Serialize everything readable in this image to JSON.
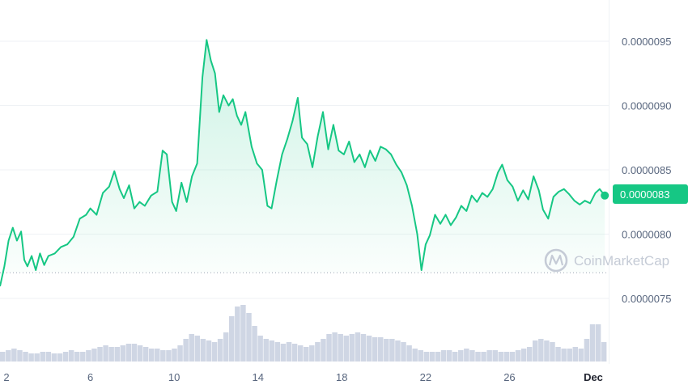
{
  "watermark": {
    "text": "CoinMarketCap",
    "icon": "coinmarketcap-logo-icon"
  },
  "colors": {
    "up": "#16c784",
    "down": "#ea3943",
    "grid": "#eff2f5",
    "volume": "#cfd6e4",
    "badge": "#16c784"
  },
  "chart_data": {
    "type": "line",
    "title": "",
    "xlabel": "",
    "ylabel": "",
    "ylim": [
      7.2e-07,
      9.8e-07
    ],
    "y_ticks": [
      "0.0000075",
      "0.0000080",
      "0.0000085",
      "0.0000090",
      "0.0000095"
    ],
    "y_tick_values": [
      7.5e-07,
      8e-07,
      8.5e-07,
      9e-07,
      9.5e-07
    ],
    "x_ticks": [
      "2",
      "6",
      "10",
      "14",
      "18",
      "22",
      "26",
      "Dec"
    ],
    "x_tick_days": [
      2,
      6,
      10,
      14,
      18,
      22,
      26,
      30
    ],
    "current_price_label": "0.0000083",
    "baseline": 7.7e-07,
    "grid": true,
    "series": [
      {
        "values": [
          [
            1.7,
            7.6e-07
          ],
          [
            1.9,
            7.75e-07
          ],
          [
            2.1,
            7.95e-07
          ],
          [
            2.3,
            8.05e-07
          ],
          [
            2.5,
            7.95e-07
          ],
          [
            2.7,
            8.02e-07
          ],
          [
            2.85,
            7.8e-07
          ],
          [
            3.0,
            7.75e-07
          ],
          [
            3.2,
            7.83e-07
          ],
          [
            3.4,
            7.72e-07
          ],
          [
            3.6,
            7.85e-07
          ],
          [
            3.8,
            7.76e-07
          ],
          [
            4.0,
            7.83e-07
          ],
          [
            4.3,
            7.85e-07
          ],
          [
            4.6,
            7.9e-07
          ],
          [
            4.9,
            7.92e-07
          ],
          [
            5.2,
            7.98e-07
          ],
          [
            5.5,
            8.12e-07
          ],
          [
            5.8,
            8.15e-07
          ],
          [
            6.0,
            8.2e-07
          ],
          [
            6.3,
            8.15e-07
          ],
          [
            6.6,
            8.32e-07
          ],
          [
            6.9,
            8.37e-07
          ],
          [
            7.15,
            8.49e-07
          ],
          [
            7.4,
            8.35e-07
          ],
          [
            7.6,
            8.28e-07
          ],
          [
            7.85,
            8.38e-07
          ],
          [
            8.1,
            8.2e-07
          ],
          [
            8.35,
            8.25e-07
          ],
          [
            8.6,
            8.22e-07
          ],
          [
            8.9,
            8.3e-07
          ],
          [
            9.2,
            8.33e-07
          ],
          [
            9.45,
            8.65e-07
          ],
          [
            9.65,
            8.62e-07
          ],
          [
            9.9,
            8.25e-07
          ],
          [
            10.1,
            8.18e-07
          ],
          [
            10.35,
            8.4e-07
          ],
          [
            10.6,
            8.25e-07
          ],
          [
            10.85,
            8.45e-07
          ],
          [
            11.1,
            8.55e-07
          ],
          [
            11.35,
            9.22e-07
          ],
          [
            11.55,
            9.51e-07
          ],
          [
            11.75,
            9.35e-07
          ],
          [
            11.95,
            9.25e-07
          ],
          [
            12.15,
            8.95e-07
          ],
          [
            12.35,
            9.08e-07
          ],
          [
            12.6,
            9e-07
          ],
          [
            12.8,
            9.05e-07
          ],
          [
            13.0,
            8.92e-07
          ],
          [
            13.2,
            8.85e-07
          ],
          [
            13.4,
            8.95e-07
          ],
          [
            13.7,
            8.68e-07
          ],
          [
            13.95,
            8.55e-07
          ],
          [
            14.2,
            8.5e-07
          ],
          [
            14.45,
            8.22e-07
          ],
          [
            14.65,
            8.2e-07
          ],
          [
            14.9,
            8.42e-07
          ],
          [
            15.15,
            8.62e-07
          ],
          [
            15.4,
            8.74e-07
          ],
          [
            15.65,
            8.88e-07
          ],
          [
            15.9,
            9.06e-07
          ],
          [
            16.1,
            8.75e-07
          ],
          [
            16.35,
            8.7e-07
          ],
          [
            16.6,
            8.52e-07
          ],
          [
            16.85,
            8.76e-07
          ],
          [
            17.1,
            8.95e-07
          ],
          [
            17.35,
            8.66e-07
          ],
          [
            17.6,
            8.85e-07
          ],
          [
            17.85,
            8.65e-07
          ],
          [
            18.1,
            8.62e-07
          ],
          [
            18.35,
            8.72e-07
          ],
          [
            18.6,
            8.56e-07
          ],
          [
            18.85,
            8.62e-07
          ],
          [
            19.1,
            8.52e-07
          ],
          [
            19.35,
            8.65e-07
          ],
          [
            19.6,
            8.57e-07
          ],
          [
            19.85,
            8.68e-07
          ],
          [
            20.1,
            8.66e-07
          ],
          [
            20.35,
            8.62e-07
          ],
          [
            20.6,
            8.54e-07
          ],
          [
            20.85,
            8.48e-07
          ],
          [
            21.1,
            8.38e-07
          ],
          [
            21.35,
            8.22e-07
          ],
          [
            21.6,
            8e-07
          ],
          [
            21.8,
            7.72e-07
          ],
          [
            22.0,
            7.92e-07
          ],
          [
            22.2,
            7.99e-07
          ],
          [
            22.45,
            8.15e-07
          ],
          [
            22.7,
            8.08e-07
          ],
          [
            22.95,
            8.15e-07
          ],
          [
            23.2,
            8.07e-07
          ],
          [
            23.45,
            8.13e-07
          ],
          [
            23.7,
            8.22e-07
          ],
          [
            23.95,
            8.18e-07
          ],
          [
            24.2,
            8.3e-07
          ],
          [
            24.45,
            8.25e-07
          ],
          [
            24.7,
            8.32e-07
          ],
          [
            24.95,
            8.29e-07
          ],
          [
            25.2,
            8.35e-07
          ],
          [
            25.45,
            8.48e-07
          ],
          [
            25.65,
            8.54e-07
          ],
          [
            25.9,
            8.42e-07
          ],
          [
            26.15,
            8.37e-07
          ],
          [
            26.4,
            8.26e-07
          ],
          [
            26.65,
            8.34e-07
          ],
          [
            26.9,
            8.27e-07
          ],
          [
            27.15,
            8.45e-07
          ],
          [
            27.4,
            8.34e-07
          ],
          [
            27.6,
            8.19e-07
          ],
          [
            27.85,
            8.12e-07
          ],
          [
            28.1,
            8.29e-07
          ],
          [
            28.35,
            8.33e-07
          ],
          [
            28.6,
            8.35e-07
          ],
          [
            28.85,
            8.31e-07
          ],
          [
            29.1,
            8.26e-07
          ],
          [
            29.35,
            8.23e-07
          ],
          [
            29.6,
            8.26e-07
          ],
          [
            29.85,
            8.24e-07
          ],
          [
            30.1,
            8.32e-07
          ],
          [
            30.3,
            8.35e-07
          ],
          [
            30.55,
            8.3e-07
          ]
        ]
      }
    ],
    "volume": [
      6,
      7,
      8,
      7,
      6,
      5,
      5,
      6,
      6,
      5,
      5,
      6,
      7,
      6,
      6,
      7,
      8,
      9,
      10,
      9,
      9,
      10,
      11,
      11,
      10,
      9,
      8,
      8,
      7,
      7,
      8,
      10,
      14,
      17,
      16,
      14,
      13,
      12,
      14,
      18,
      28,
      34,
      35,
      30,
      22,
      16,
      14,
      13,
      12,
      11,
      12,
      11,
      10,
      9,
      10,
      12,
      14,
      17,
      18,
      17,
      16,
      17,
      18,
      17,
      16,
      15,
      15,
      14,
      14,
      13,
      12,
      10,
      8,
      7,
      6,
      6,
      6,
      7,
      7,
      6,
      7,
      8,
      7,
      6,
      6,
      7,
      7,
      6,
      6,
      6,
      7,
      8,
      9,
      13,
      14,
      13,
      12,
      9,
      8,
      8,
      9,
      8,
      14,
      23,
      23,
      12
    ]
  }
}
